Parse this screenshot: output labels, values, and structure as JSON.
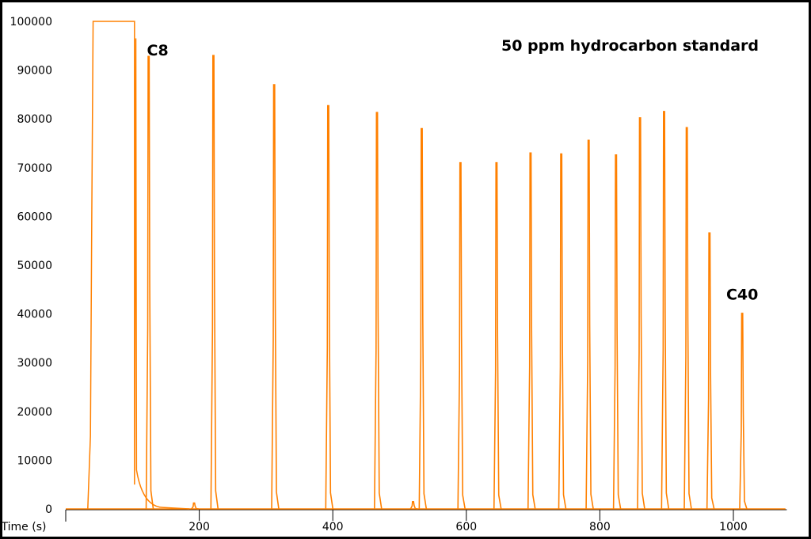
{
  "chart_data": {
    "type": "line",
    "title": "50 ppm hydrocarbon standard",
    "xlabel": "Time (s)",
    "ylabel": "",
    "xlim": [
      0,
      1080
    ],
    "ylim": [
      0,
      100000
    ],
    "x_ticks": [
      200,
      400,
      600,
      800,
      1000
    ],
    "y_ticks": [
      0,
      10000,
      20000,
      30000,
      40000,
      50000,
      60000,
      70000,
      80000,
      90000,
      100000
    ],
    "grid": false,
    "color": "#ff8000",
    "solvent_peak": {
      "start": 41,
      "end": 103,
      "value": 100000,
      "shoulder": {
        "x": 105,
        "y": 96500
      }
    },
    "peaks": [
      {
        "x": 124,
        "y": 92800
      },
      {
        "x": 221,
        "y": 93000
      },
      {
        "x": 312,
        "y": 87000
      },
      {
        "x": 393,
        "y": 82700
      },
      {
        "x": 466,
        "y": 81300
      },
      {
        "x": 533,
        "y": 78000
      },
      {
        "x": 591,
        "y": 71000
      },
      {
        "x": 645,
        "y": 71000
      },
      {
        "x": 696,
        "y": 73000
      },
      {
        "x": 742,
        "y": 72800
      },
      {
        "x": 783,
        "y": 75600
      },
      {
        "x": 824,
        "y": 72600
      },
      {
        "x": 860,
        "y": 80200
      },
      {
        "x": 896,
        "y": 81500
      },
      {
        "x": 930,
        "y": 78200
      },
      {
        "x": 964,
        "y": 56600
      },
      {
        "x": 1013,
        "y": 40100
      }
    ],
    "minor_peaks": [
      {
        "x": 192,
        "y": 1200
      },
      {
        "x": 520,
        "y": 1500
      }
    ],
    "annotations": [
      {
        "text": "C8",
        "x": 124,
        "y": 95000
      },
      {
        "text": "C40",
        "x": 1013,
        "y": 42000
      }
    ]
  }
}
